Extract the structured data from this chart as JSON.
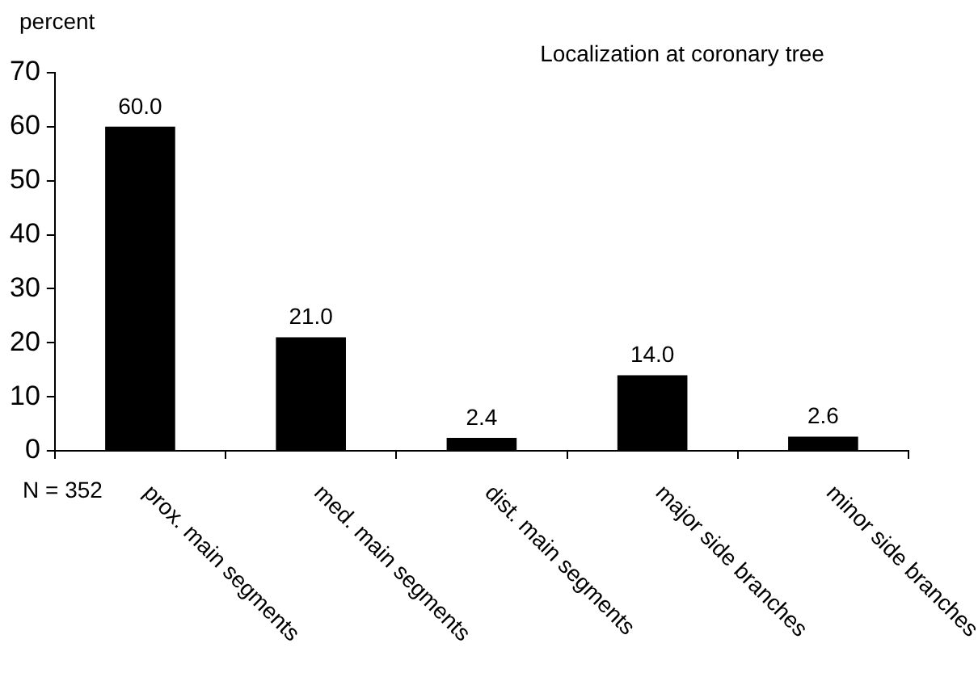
{
  "chart_data": {
    "type": "bar",
    "title": "Localization at coronary tree",
    "ylabel": "percent",
    "categories": [
      "prox. main segments",
      "med. main segments",
      "dist. main segments",
      "major side branches",
      "minor side branches"
    ],
    "values": [
      60.0,
      21.0,
      2.4,
      14.0,
      2.6
    ],
    "value_labels": [
      "60.0",
      "21.0",
      "2.4",
      "14.0",
      "2.6"
    ],
    "color": "#000000",
    "ylim": [
      0,
      70
    ],
    "yticks": [
      0,
      10,
      20,
      30,
      40,
      50,
      60,
      70
    ],
    "grid": false,
    "legend": false,
    "annotations": [
      "N = 352"
    ]
  }
}
